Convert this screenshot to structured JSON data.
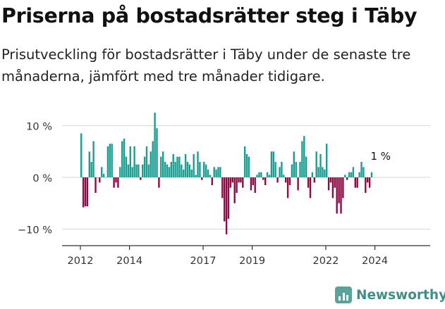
{
  "header": {
    "title": "Priserna på bostadsrätter steg i Täby",
    "subtitle": "Prisutveckling för bostadsrätter i Täby under de senaste tre månaderna, jämfört med tre månader tidigare."
  },
  "brand": {
    "name": "Newsworthy",
    "icon": "newsworthy-logo-icon"
  },
  "colors": {
    "positive": "#1a9e92",
    "negative": "#8c0c43",
    "grid": "#d6d6d6",
    "axis": "#333333"
  },
  "chart_data": {
    "type": "bar",
    "unit": "%",
    "ylim": [
      -13,
      13
    ],
    "yticks": [
      -10,
      0,
      10
    ],
    "ytick_labels": [
      "−10 %",
      "0 %",
      "10 %"
    ],
    "xtick_labels": [
      {
        "label": "2012",
        "year": 2012
      },
      {
        "label": "2014",
        "year": 2014
      },
      {
        "label": "2017",
        "year": 2017
      },
      {
        "label": "2019",
        "year": 2019
      },
      {
        "label": "2022",
        "year": 2022
      },
      {
        "label": "2024",
        "year": 2024
      }
    ],
    "grid": true,
    "start": "2012-01",
    "frequency": "monthly",
    "values": [
      8.5,
      -5.8,
      -5.6,
      -5.6,
      5,
      3,
      7,
      -3,
      0,
      -1,
      2,
      0.7,
      0,
      6,
      6.5,
      6.5,
      -2,
      -1,
      -2,
      2,
      7,
      7.5,
      4,
      2.5,
      6,
      2,
      6,
      2.5,
      2.5,
      -0.5,
      2.5,
      4,
      6,
      2.5,
      5,
      7,
      12.5,
      9.5,
      -2,
      4,
      5,
      3,
      2.5,
      2,
      3,
      4.5,
      3,
      4,
      4,
      2.5,
      1.5,
      4.5,
      3,
      2.5,
      1.5,
      4.5,
      0.5,
      5,
      3,
      -0.5,
      3,
      2.5,
      1.5,
      0.5,
      -1.5,
      2,
      1.5,
      2,
      2,
      -4,
      -8.5,
      -11,
      -8,
      -2,
      -1,
      -5,
      -3,
      -1,
      -1,
      -2,
      6,
      4.5,
      4,
      -2.5,
      -1.5,
      -3,
      0.5,
      1,
      1,
      -0.5,
      -1.5,
      1,
      0.5,
      5,
      5,
      3,
      -1,
      2,
      3,
      0.5,
      -1,
      -4,
      -1.5,
      2.5,
      5,
      3,
      -2.5,
      3,
      7,
      8,
      4,
      -2,
      -4,
      1,
      -1,
      5,
      2,
      4.5,
      2,
      1.5,
      6.5,
      -2.5,
      -1,
      -4,
      -2,
      -7,
      -5,
      -7,
      -4,
      0.5,
      -0.5,
      1,
      1,
      2,
      -2,
      -2,
      1,
      3,
      2,
      -3,
      -1,
      -2,
      1
    ],
    "annotation": {
      "label": "1 %",
      "index": 147
    }
  }
}
